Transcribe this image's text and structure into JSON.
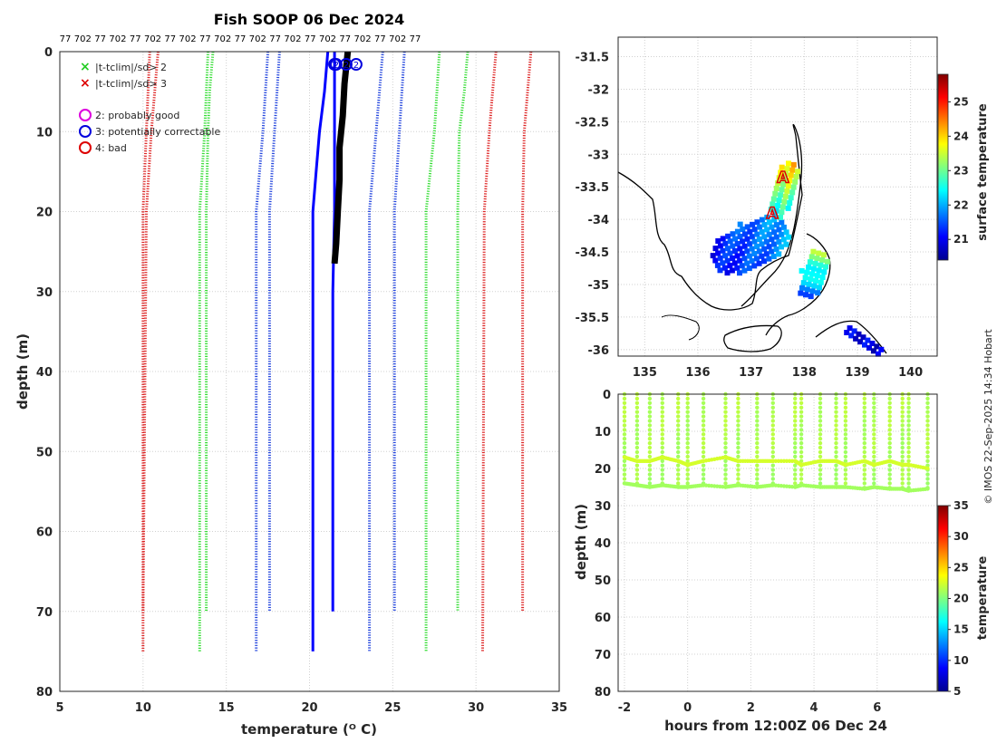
{
  "title": "Fish SOOP 06 Dec 2024",
  "credit": "© IMOS 22-Sep-2025 14:34 Hobart",
  "chart_data": [
    {
      "id": "profile",
      "type": "line",
      "xlabel": "temperature (ᴼ C)",
      "ylabel": "depth (m)",
      "xlim": [
        5,
        35
      ],
      "ylim": [
        80,
        0
      ],
      "xticks": [
        "5",
        "10",
        "15",
        "20",
        "25",
        "30",
        "35"
      ],
      "yticks": [
        "0",
        "10",
        "20",
        "30",
        "40",
        "50",
        "60",
        "70",
        "80"
      ],
      "top_labels": [
        "77",
        "702",
        "77",
        "702",
        "77",
        "702",
        "77",
        "702",
        "77",
        "702",
        "77",
        "702",
        "77",
        "702",
        "77",
        "702",
        "77",
        "702",
        "77",
        "702",
        "77"
      ],
      "legend": [
        {
          "symbol": "×",
          "color": "#22cc22",
          "label": "|t-tclim|/sd> 2"
        },
        {
          "symbol": "×",
          "color": "#dd0000",
          "label": "|t-tclim|/sd> 3"
        },
        {
          "symbol": "○",
          "color": "#dd00dd",
          "label": "2: probably good"
        },
        {
          "symbol": "○",
          "color": "#0000dd",
          "label": "3: potentially correctable"
        },
        {
          "symbol": "○",
          "color": "#dd0000",
          "label": "4: bad"
        }
      ],
      "envelopes": [
        {
          "name": "climatology-70m-left",
          "color": "#2244dd",
          "points": [
            [
              18.2,
              0
            ],
            [
              17.9,
              10
            ],
            [
              17.6,
              20
            ],
            [
              17.6,
              70
            ]
          ]
        },
        {
          "name": "climatology-70m-right",
          "color": "#2244dd",
          "points": [
            [
              25.7,
              0
            ],
            [
              25.4,
              10
            ],
            [
              25.1,
              20
            ],
            [
              25.1,
              70
            ]
          ]
        },
        {
          "name": "climatology-75m-left",
          "color": "#2244dd",
          "points": [
            [
              17.5,
              0
            ],
            [
              17.2,
              10
            ],
            [
              16.8,
              20
            ],
            [
              16.8,
              75
            ]
          ]
        },
        {
          "name": "climatology-75m-right",
          "color": "#2244dd",
          "points": [
            [
              24.4,
              0
            ],
            [
              24.0,
              10
            ],
            [
              23.6,
              20
            ],
            [
              23.6,
              75
            ]
          ]
        },
        {
          "name": "green-70m-left",
          "color": "#33dd33",
          "points": [
            [
              14.2,
              0
            ],
            [
              14.0,
              5
            ],
            [
              13.9,
              10
            ],
            [
              13.8,
              20
            ],
            [
              13.8,
              70
            ]
          ]
        },
        {
          "name": "green-70m-right",
          "color": "#33dd33",
          "points": [
            [
              29.5,
              0
            ],
            [
              29.3,
              5
            ],
            [
              29.0,
              10
            ],
            [
              28.9,
              20
            ],
            [
              28.9,
              70
            ]
          ]
        },
        {
          "name": "green-75m-left",
          "color": "#33dd33",
          "points": [
            [
              13.9,
              0
            ],
            [
              13.7,
              10
            ],
            [
              13.4,
              20
            ],
            [
              13.4,
              75
            ]
          ]
        },
        {
          "name": "green-75m-right",
          "color": "#33dd33",
          "points": [
            [
              27.8,
              0
            ],
            [
              27.5,
              10
            ],
            [
              27.0,
              20
            ],
            [
              27.0,
              75
            ]
          ]
        },
        {
          "name": "red-70m-left",
          "color": "#dd2222",
          "points": [
            [
              10.9,
              0
            ],
            [
              10.7,
              5
            ],
            [
              10.5,
              10
            ],
            [
              10.2,
              20
            ],
            [
              10.0,
              70
            ]
          ]
        },
        {
          "name": "red-70m-right",
          "color": "#dd2222",
          "points": [
            [
              33.3,
              0
            ],
            [
              33.1,
              5
            ],
            [
              32.9,
              10
            ],
            [
              32.8,
              20
            ],
            [
              32.8,
              70
            ]
          ]
        },
        {
          "name": "red-75m-left",
          "color": "#dd2222",
          "points": [
            [
              10.4,
              0
            ],
            [
              10.2,
              10
            ],
            [
              10.0,
              20
            ],
            [
              10.0,
              75
            ]
          ]
        },
        {
          "name": "red-75m-right",
          "color": "#dd2222",
          "points": [
            [
              31.2,
              0
            ],
            [
              31.0,
              5
            ],
            [
              30.8,
              10
            ],
            [
              30.5,
              20
            ],
            [
              30.4,
              75
            ]
          ]
        }
      ],
      "profiles": [
        {
          "name": "profile-702-blue",
          "color": "#0000ff",
          "points": [
            [
              21.1,
              0
            ],
            [
              20.9,
              5
            ],
            [
              20.6,
              10
            ],
            [
              20.4,
              15
            ],
            [
              20.2,
              20
            ],
            [
              20.2,
              75
            ]
          ]
        },
        {
          "name": "profile-77-blue",
          "color": "#0000ff",
          "points": [
            [
              21.5,
              0
            ],
            [
              21.5,
              20
            ],
            [
              21.4,
              30
            ],
            [
              21.4,
              70
            ]
          ]
        },
        {
          "name": "profile-black",
          "color": "#000000",
          "points": [
            [
              22.3,
              0
            ],
            [
              22.1,
              4
            ],
            [
              22.0,
              8
            ],
            [
              21.8,
              12
            ],
            [
              21.8,
              16
            ],
            [
              21.7,
              20
            ],
            [
              21.6,
              24
            ],
            [
              21.5,
              26.5
            ]
          ]
        }
      ],
      "qc_flags": [
        {
          "label": "2",
          "temp": 22.2,
          "depth": 0.8,
          "color": "#0000dd"
        },
        {
          "label": "2",
          "temp": 21.6,
          "depth": 0.8,
          "color": "#0000dd"
        },
        {
          "label": "2",
          "temp": 22.8,
          "depth": 0.8,
          "color": "#0000dd"
        },
        {
          "label": "2",
          "temp": 21.5,
          "depth": 0.8,
          "color": "#0000dd"
        }
      ]
    },
    {
      "id": "map",
      "type": "heatmap",
      "xlim": [
        134.5,
        140.5
      ],
      "ylim": [
        -36.1,
        -31.2
      ],
      "xticks": [
        "135",
        "136",
        "137",
        "138",
        "139",
        "140"
      ],
      "yticks": [
        "-31.5",
        "-32",
        "-32.5",
        "-33",
        "-33.5",
        "-34",
        "-34.5",
        "-35",
        "-35.5",
        "-36"
      ],
      "colorbar_label": "surface temperature",
      "colorbar_range": [
        20.4,
        25.8
      ],
      "colorbar_ticks": [
        "21",
        "22",
        "23",
        "24",
        "25"
      ],
      "markers": [
        {
          "label": "A",
          "lon": 137.6,
          "lat": -33.35
        },
        {
          "label": "A",
          "lon": 137.4,
          "lat": -33.9
        }
      ]
    },
    {
      "id": "section",
      "type": "scatter",
      "xlabel": "hours from 12:00Z 06 Dec 24",
      "ylabel": "depth (m)",
      "xlim": [
        -2.2,
        7.9
      ],
      "ylim": [
        80,
        0
      ],
      "xticks": [
        "-2",
        "0",
        "2",
        "4",
        "6"
      ],
      "yticks": [
        "0",
        "10",
        "20",
        "30",
        "40",
        "50",
        "60",
        "70",
        "80"
      ],
      "colorbar_label": "temperature",
      "colorbar_range": [
        5,
        35
      ],
      "colorbar_ticks": [
        "5",
        "10",
        "15",
        "20",
        "25",
        "30",
        "35"
      ],
      "casts_hours": [
        -2.0,
        -1.6,
        -1.2,
        -0.8,
        -0.3,
        0.0,
        0.5,
        1.2,
        1.6,
        2.2,
        2.7,
        3.4,
        3.6,
        4.2,
        4.7,
        5.0,
        5.6,
        5.9,
        6.4,
        6.8,
        7.0,
        7.6
      ],
      "upper_layer_depth": [
        17,
        18,
        18,
        17,
        18,
        19,
        18,
        17,
        18,
        18,
        18,
        18,
        19,
        18,
        18,
        19,
        18,
        19,
        18,
        19,
        19,
        20
      ],
      "lower_layer_depth": [
        24,
        24.5,
        25,
        24.5,
        25,
        25,
        24.5,
        25,
        24.5,
        25,
        24.5,
        25,
        24.5,
        25,
        25,
        25,
        25.5,
        25,
        25.5,
        25.5,
        26,
        25.5
      ]
    }
  ]
}
